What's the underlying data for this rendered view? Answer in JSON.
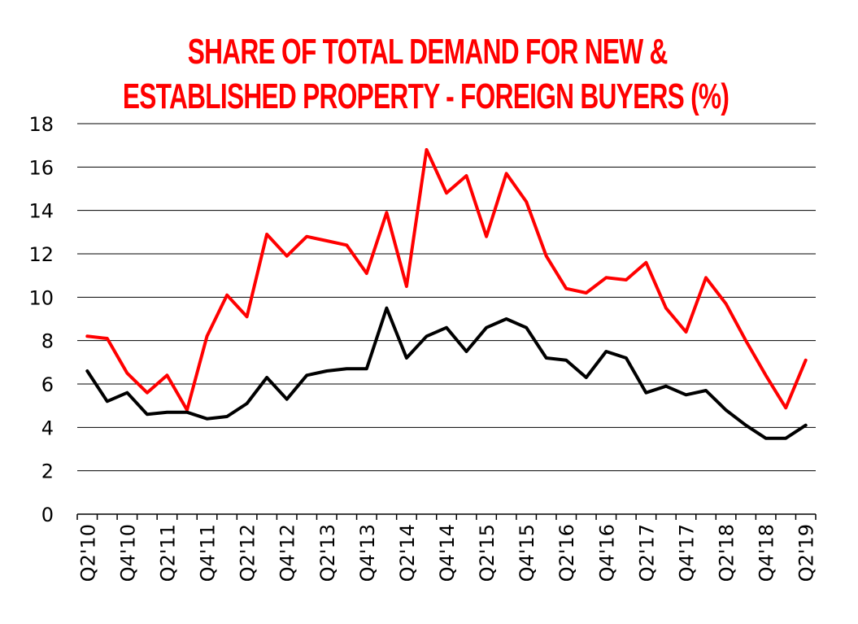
{
  "colors": {
    "title": "#ff0000",
    "series_red": "#ff0000",
    "series_black": "#000000",
    "grid": "#000000",
    "background": "#ffffff"
  },
  "chart_data": {
    "type": "line",
    "title_lines": [
      "SHARE OF TOTAL DEMAND FOR NEW &",
      "ESTABLISHED PROPERTY - FOREIGN BUYERS (%)"
    ],
    "xlabel": "",
    "ylabel": "",
    "ylim": [
      0,
      18
    ],
    "yticks": [
      "0",
      "2",
      "4",
      "6",
      "8",
      "10",
      "12",
      "14",
      "16",
      "18"
    ],
    "grid": true,
    "legend": "none",
    "categories": [
      "Q2'10",
      "Q3'10",
      "Q4'10",
      "Q1'11",
      "Q2'11",
      "Q3'11",
      "Q4'11",
      "Q1'12",
      "Q2'12",
      "Q3'12",
      "Q4'12",
      "Q1'13",
      "Q2'13",
      "Q3'13",
      "Q4'13",
      "Q1'14",
      "Q2'14",
      "Q3'14",
      "Q4'14",
      "Q1'15",
      "Q2'15",
      "Q3'15",
      "Q4'15",
      "Q1'16",
      "Q2'16",
      "Q3'16",
      "Q4'16",
      "Q1'17",
      "Q2'17",
      "Q3'17",
      "Q4'17",
      "Q1'18",
      "Q2'18",
      "Q3'18",
      "Q4'18",
      "Q1'19",
      "Q2'19"
    ],
    "xtick_labels": [
      "Q2'10",
      "Q4'10",
      "Q2'11",
      "Q4'11",
      "Q2'12",
      "Q4'12",
      "Q2'13",
      "Q4'13",
      "Q2'14",
      "Q4'14",
      "Q2'15",
      "Q4'15",
      "Q2'16",
      "Q4'16",
      "Q2'17",
      "Q4'17",
      "Q2'18",
      "Q4'18",
      "Q2'19"
    ],
    "series": [
      {
        "name": "series-red",
        "color": "#ff0000",
        "values": [
          8.2,
          8.1,
          6.5,
          5.6,
          6.4,
          4.8,
          8.2,
          10.1,
          9.1,
          12.9,
          11.9,
          12.8,
          12.6,
          12.4,
          11.1,
          13.9,
          10.5,
          16.8,
          14.8,
          15.6,
          12.8,
          15.7,
          14.4,
          11.9,
          10.4,
          10.2,
          10.9,
          10.8,
          11.6,
          9.5,
          8.4,
          10.9,
          9.7,
          8.0,
          6.4,
          4.9,
          7.1
        ]
      },
      {
        "name": "series-black",
        "color": "#000000",
        "values": [
          6.6,
          5.2,
          5.6,
          4.6,
          4.7,
          4.7,
          4.4,
          4.5,
          5.1,
          6.3,
          5.3,
          6.4,
          6.6,
          6.7,
          6.7,
          9.5,
          7.2,
          8.2,
          8.6,
          7.5,
          8.6,
          9.0,
          8.6,
          7.2,
          7.1,
          6.3,
          7.5,
          7.2,
          5.6,
          5.9,
          5.5,
          5.7,
          4.8,
          4.1,
          3.5,
          3.5,
          4.1
        ]
      }
    ]
  }
}
